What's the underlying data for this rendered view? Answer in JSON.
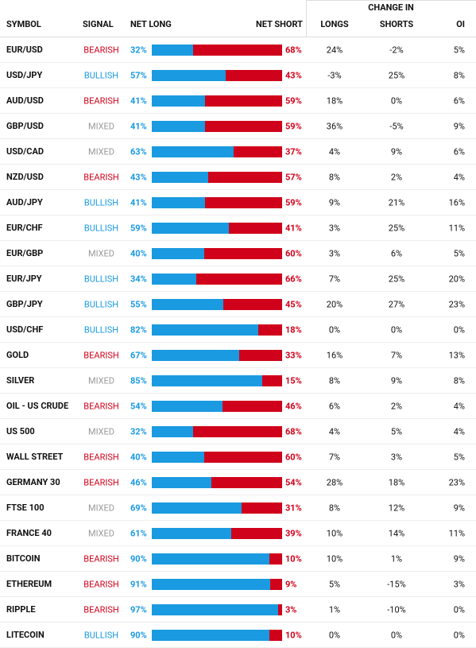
{
  "header": {
    "symbol": "SYMBOL",
    "signal": "SIGNAL",
    "net_long": "NET LONG",
    "net_short": "NET SHORT",
    "change_in": "CHANGE IN",
    "longs": "LONGS",
    "shorts": "SHORTS",
    "oi": "OI"
  },
  "rows": [
    {
      "symbol": "EUR/USD",
      "signal": "BEARISH",
      "net_long": {
        "value": 32,
        "label": "32%"
      },
      "net_short": {
        "value": 68,
        "label": "68%"
      },
      "longs": "24%",
      "shorts": "-2%",
      "oi": "5%"
    },
    {
      "symbol": "USD/JPY",
      "signal": "BULLISH",
      "net_long": {
        "value": 57,
        "label": "57%"
      },
      "net_short": {
        "value": 43,
        "label": "43%"
      },
      "longs": "-3%",
      "shorts": "25%",
      "oi": "8%"
    },
    {
      "symbol": "AUD/USD",
      "signal": "BEARISH",
      "net_long": {
        "value": 41,
        "label": "41%"
      },
      "net_short": {
        "value": 59,
        "label": "59%"
      },
      "longs": "18%",
      "shorts": "0%",
      "oi": "6%"
    },
    {
      "symbol": "GBP/USD",
      "signal": "MIXED",
      "net_long": {
        "value": 41,
        "label": "41%"
      },
      "net_short": {
        "value": 59,
        "label": "59%"
      },
      "longs": "36%",
      "shorts": "-5%",
      "oi": "9%"
    },
    {
      "symbol": "USD/CAD",
      "signal": "MIXED",
      "net_long": {
        "value": 63,
        "label": "63%"
      },
      "net_short": {
        "value": 37,
        "label": "37%"
      },
      "longs": "4%",
      "shorts": "9%",
      "oi": "6%"
    },
    {
      "symbol": "NZD/USD",
      "signal": "BEARISH",
      "net_long": {
        "value": 43,
        "label": "43%"
      },
      "net_short": {
        "value": 57,
        "label": "57%"
      },
      "longs": "8%",
      "shorts": "2%",
      "oi": "4%"
    },
    {
      "symbol": "AUD/JPY",
      "signal": "BULLISH",
      "net_long": {
        "value": 41,
        "label": "41%"
      },
      "net_short": {
        "value": 59,
        "label": "59%"
      },
      "longs": "9%",
      "shorts": "21%",
      "oi": "16%"
    },
    {
      "symbol": "EUR/CHF",
      "signal": "BULLISH",
      "net_long": {
        "value": 59,
        "label": "59%"
      },
      "net_short": {
        "value": 41,
        "label": "41%"
      },
      "longs": "3%",
      "shorts": "25%",
      "oi": "11%"
    },
    {
      "symbol": "EUR/GBP",
      "signal": "MIXED",
      "net_long": {
        "value": 40,
        "label": "40%"
      },
      "net_short": {
        "value": 60,
        "label": "60%"
      },
      "longs": "3%",
      "shorts": "6%",
      "oi": "5%"
    },
    {
      "symbol": "EUR/JPY",
      "signal": "BULLISH",
      "net_long": {
        "value": 34,
        "label": "34%"
      },
      "net_short": {
        "value": 66,
        "label": "66%"
      },
      "longs": "7%",
      "shorts": "25%",
      "oi": "20%"
    },
    {
      "symbol": "GBP/JPY",
      "signal": "BULLISH",
      "net_long": {
        "value": 55,
        "label": "55%"
      },
      "net_short": {
        "value": 45,
        "label": "45%"
      },
      "longs": "20%",
      "shorts": "27%",
      "oi": "23%"
    },
    {
      "symbol": "USD/CHF",
      "signal": "BULLISH",
      "net_long": {
        "value": 82,
        "label": "82%"
      },
      "net_short": {
        "value": 18,
        "label": "18%"
      },
      "longs": "0%",
      "shorts": "0%",
      "oi": "0%"
    },
    {
      "symbol": "GOLD",
      "signal": "BEARISH",
      "net_long": {
        "value": 67,
        "label": "67%"
      },
      "net_short": {
        "value": 33,
        "label": "33%"
      },
      "longs": "16%",
      "shorts": "7%",
      "oi": "13%"
    },
    {
      "symbol": "SILVER",
      "signal": "MIXED",
      "net_long": {
        "value": 85,
        "label": "85%"
      },
      "net_short": {
        "value": 15,
        "label": "15%"
      },
      "longs": "8%",
      "shorts": "9%",
      "oi": "8%"
    },
    {
      "symbol": "OIL - US CRUDE",
      "signal": "BEARISH",
      "net_long": {
        "value": 54,
        "label": "54%"
      },
      "net_short": {
        "value": 46,
        "label": "46%"
      },
      "longs": "6%",
      "shorts": "2%",
      "oi": "4%"
    },
    {
      "symbol": "US 500",
      "signal": "MIXED",
      "net_long": {
        "value": 32,
        "label": "32%"
      },
      "net_short": {
        "value": 68,
        "label": "68%"
      },
      "longs": "4%",
      "shorts": "5%",
      "oi": "4%"
    },
    {
      "symbol": "WALL STREET",
      "signal": "BEARISH",
      "net_long": {
        "value": 40,
        "label": "40%"
      },
      "net_short": {
        "value": 60,
        "label": "60%"
      },
      "longs": "7%",
      "shorts": "3%",
      "oi": "5%"
    },
    {
      "symbol": "GERMANY 30",
      "signal": "BEARISH",
      "net_long": {
        "value": 46,
        "label": "46%"
      },
      "net_short": {
        "value": 54,
        "label": "54%"
      },
      "longs": "28%",
      "shorts": "18%",
      "oi": "23%"
    },
    {
      "symbol": "FTSE 100",
      "signal": "MIXED",
      "net_long": {
        "value": 69,
        "label": "69%"
      },
      "net_short": {
        "value": 31,
        "label": "31%"
      },
      "longs": "8%",
      "shorts": "12%",
      "oi": "9%"
    },
    {
      "symbol": "FRANCE 40",
      "signal": "MIXED",
      "net_long": {
        "value": 61,
        "label": "61%"
      },
      "net_short": {
        "value": 39,
        "label": "39%"
      },
      "longs": "10%",
      "shorts": "14%",
      "oi": "11%"
    },
    {
      "symbol": "BITCOIN",
      "signal": "BEARISH",
      "net_long": {
        "value": 90,
        "label": "90%"
      },
      "net_short": {
        "value": 10,
        "label": "10%"
      },
      "longs": "10%",
      "shorts": "1%",
      "oi": "9%"
    },
    {
      "symbol": "ETHEREUM",
      "signal": "BEARISH",
      "net_long": {
        "value": 91,
        "label": "91%"
      },
      "net_short": {
        "value": 9,
        "label": "9%"
      },
      "longs": "5%",
      "shorts": "-15%",
      "oi": "3%"
    },
    {
      "symbol": "RIPPLE",
      "signal": "BEARISH",
      "net_long": {
        "value": 97,
        "label": "97%"
      },
      "net_short": {
        "value": 3,
        "label": "3%"
      },
      "longs": "1%",
      "shorts": "-10%",
      "oi": "0%"
    },
    {
      "symbol": "LITECOIN",
      "signal": "BULLISH",
      "net_long": {
        "value": 90,
        "label": "90%"
      },
      "net_short": {
        "value": 10,
        "label": "10%"
      },
      "longs": "0%",
      "shorts": "0%",
      "oi": "0%"
    }
  ]
}
